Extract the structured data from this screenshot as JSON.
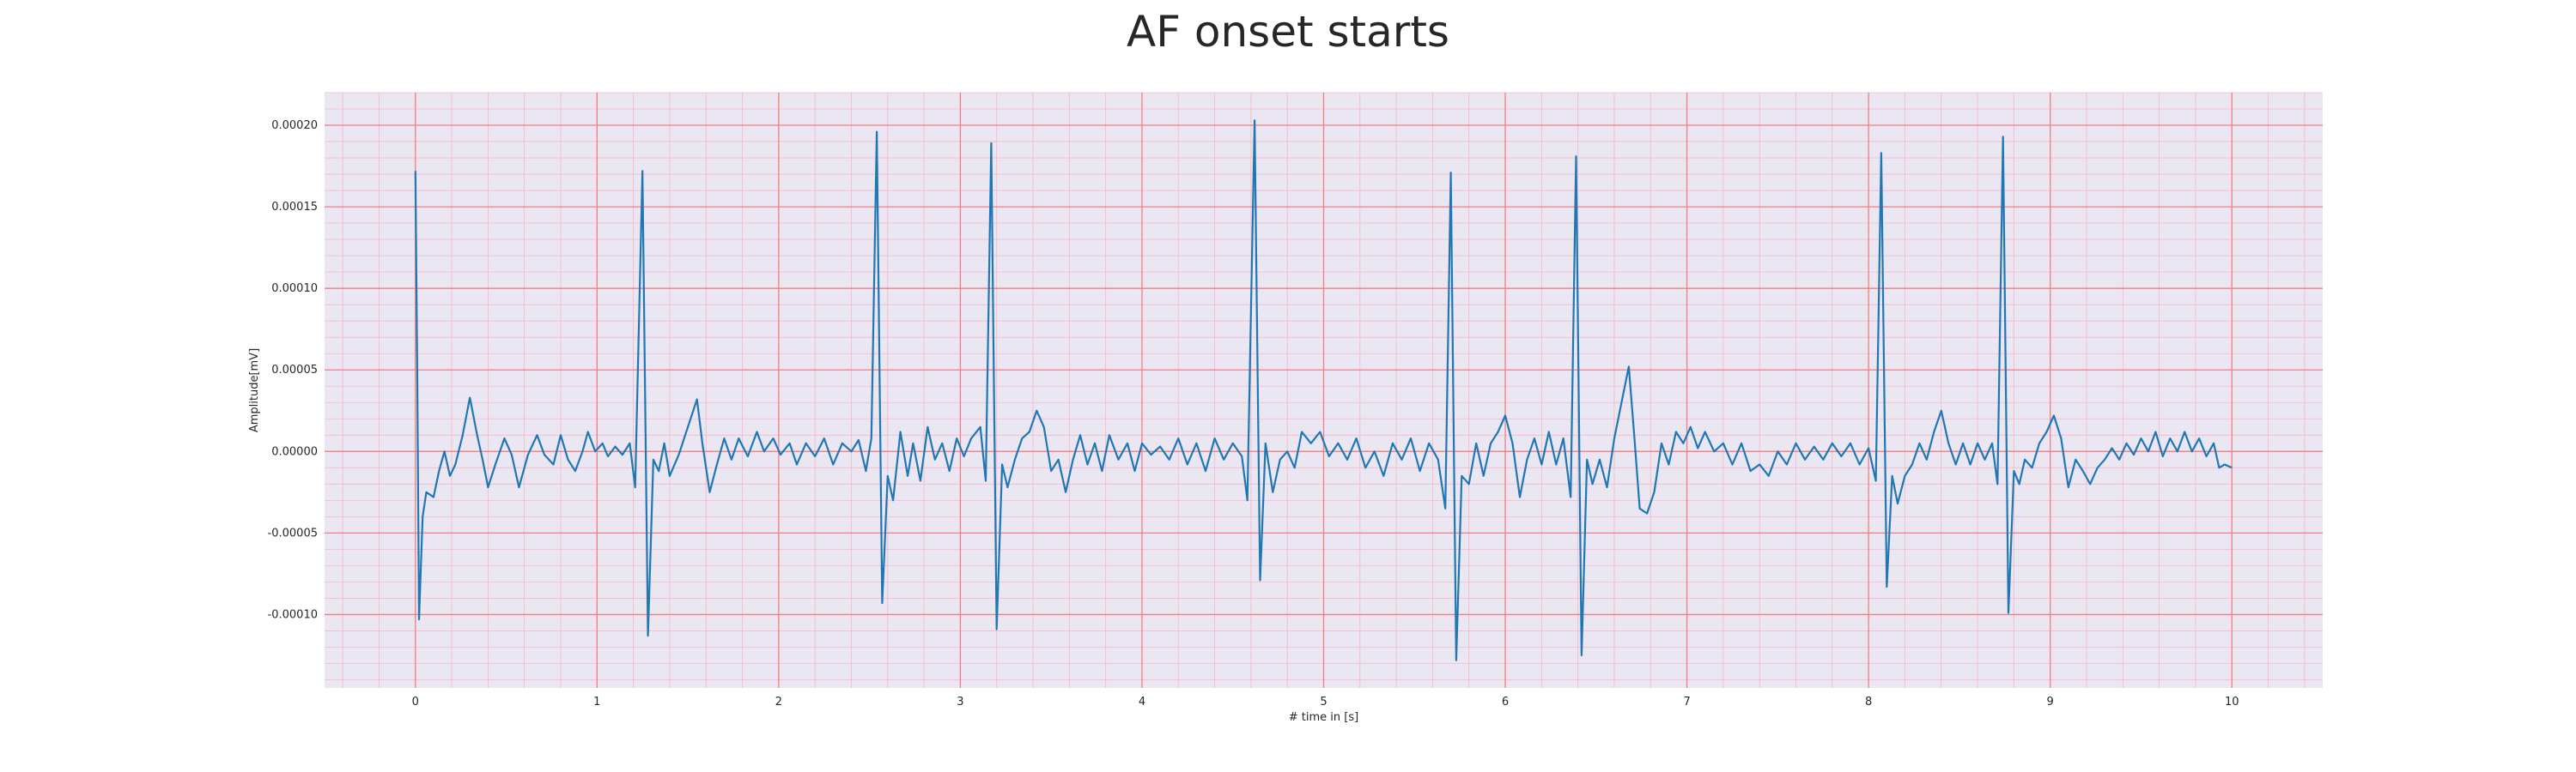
{
  "chart_data": {
    "type": "line",
    "title": "AF onset starts",
    "xlabel": "# time in [s]",
    "ylabel": "Amplitude[mV]",
    "xlim": [
      -0.5,
      10.5
    ],
    "ylim": [
      -0.000145,
      0.00022
    ],
    "xticks": [
      0,
      1,
      2,
      3,
      4,
      5,
      6,
      7,
      8,
      9,
      10
    ],
    "yticks": [
      -0.0001,
      -5e-05,
      0.0,
      5e-05,
      0.0001,
      0.00015,
      0.0002
    ],
    "ytick_labels": [
      "-0.00010",
      "-0.00005",
      "0.00000",
      "0.00005",
      "0.00010",
      "0.00015",
      "0.00020"
    ],
    "grid": "ecg-paper (major red, minor pink)",
    "colors": {
      "line": "#1f77b4",
      "background": "#eae6f2",
      "major_grid": "#f08080",
      "minor_grid": "#f5b8c8"
    },
    "series": [
      {
        "points": [
          [
            0.0,
            0.000172
          ],
          [
            0.01,
            5e-05
          ],
          [
            0.02,
            -0.000103
          ],
          [
            0.04,
            -4e-05
          ],
          [
            0.06,
            -2.5e-05
          ],
          [
            0.1,
            -2.8e-05
          ],
          [
            0.13,
            -1.2e-05
          ],
          [
            0.16,
            0.0
          ],
          [
            0.19,
            -1.5e-05
          ],
          [
            0.22,
            -8e-06
          ],
          [
            0.26,
            1e-05
          ],
          [
            0.3,
            3.3e-05
          ],
          [
            0.34,
            1e-05
          ],
          [
            0.37,
            -5e-06
          ],
          [
            0.4,
            -2.2e-05
          ],
          [
            0.44,
            -8e-06
          ],
          [
            0.49,
            8e-06
          ],
          [
            0.53,
            -2e-06
          ],
          [
            0.57,
            -2.2e-05
          ],
          [
            0.62,
            -2e-06
          ],
          [
            0.67,
            1e-05
          ],
          [
            0.71,
            -2e-06
          ],
          [
            0.76,
            -8e-06
          ],
          [
            0.8,
            1e-05
          ],
          [
            0.84,
            -5e-06
          ],
          [
            0.88,
            -1.2e-05
          ],
          [
            0.92,
            0.0
          ],
          [
            0.95,
            1.2e-05
          ],
          [
            0.99,
            0.0
          ],
          [
            1.03,
            5e-06
          ],
          [
            1.06,
            -3e-06
          ],
          [
            1.1,
            3e-06
          ],
          [
            1.14,
            -2e-06
          ],
          [
            1.18,
            5e-06
          ],
          [
            1.21,
            -2.2e-05
          ],
          [
            1.25,
            0.000172
          ],
          [
            1.28,
            -0.000113
          ],
          [
            1.31,
            -5e-06
          ],
          [
            1.34,
            -1.2e-05
          ],
          [
            1.37,
            5e-06
          ],
          [
            1.4,
            -1.5e-05
          ],
          [
            1.45,
            -2e-06
          ],
          [
            1.5,
            1.5e-05
          ],
          [
            1.55,
            3.2e-05
          ],
          [
            1.58,
            5e-06
          ],
          [
            1.62,
            -2.5e-05
          ],
          [
            1.66,
            -8e-06
          ],
          [
            1.7,
            8e-06
          ],
          [
            1.74,
            -5e-06
          ],
          [
            1.78,
            8e-06
          ],
          [
            1.83,
            -3e-06
          ],
          [
            1.88,
            1.2e-05
          ],
          [
            1.92,
            0.0
          ],
          [
            1.97,
            8e-06
          ],
          [
            2.01,
            -2e-06
          ],
          [
            2.06,
            5e-06
          ],
          [
            2.1,
            -8e-06
          ],
          [
            2.15,
            5e-06
          ],
          [
            2.2,
            -3e-06
          ],
          [
            2.25,
            8e-06
          ],
          [
            2.3,
            -8e-06
          ],
          [
            2.35,
            5e-06
          ],
          [
            2.4,
            0.0
          ],
          [
            2.44,
            7e-06
          ],
          [
            2.48,
            -1.2e-05
          ],
          [
            2.51,
            8e-06
          ],
          [
            2.54,
            0.000196
          ],
          [
            2.57,
            -9.3e-05
          ],
          [
            2.6,
            -1.5e-05
          ],
          [
            2.63,
            -3e-05
          ],
          [
            2.67,
            1.2e-05
          ],
          [
            2.71,
            -1.5e-05
          ],
          [
            2.74,
            5e-06
          ],
          [
            2.78,
            -1.8e-05
          ],
          [
            2.82,
            1.5e-05
          ],
          [
            2.86,
            -5e-06
          ],
          [
            2.9,
            5e-06
          ],
          [
            2.94,
            -1.2e-05
          ],
          [
            2.98,
            8e-06
          ],
          [
            3.02,
            -3e-06
          ],
          [
            3.06,
            8e-06
          ],
          [
            3.11,
            1.5e-05
          ],
          [
            3.14,
            -1.8e-05
          ],
          [
            3.17,
            0.000189
          ],
          [
            3.2,
            -0.000109
          ],
          [
            3.23,
            -8e-06
          ],
          [
            3.26,
            -2.2e-05
          ],
          [
            3.3,
            -5e-06
          ],
          [
            3.34,
            8e-06
          ],
          [
            3.38,
            1.2e-05
          ],
          [
            3.42,
            2.5e-05
          ],
          [
            3.46,
            1.5e-05
          ],
          [
            3.5,
            -1.2e-05
          ],
          [
            3.54,
            -5e-06
          ],
          [
            3.58,
            -2.5e-05
          ],
          [
            3.62,
            -5e-06
          ],
          [
            3.66,
            1e-05
          ],
          [
            3.7,
            -8e-06
          ],
          [
            3.74,
            5e-06
          ],
          [
            3.78,
            -1.2e-05
          ],
          [
            3.82,
            1e-05
          ],
          [
            3.87,
            -5e-06
          ],
          [
            3.92,
            5e-06
          ],
          [
            3.96,
            -1.2e-05
          ],
          [
            4.0,
            5e-06
          ],
          [
            4.05,
            -2e-06
          ],
          [
            4.1,
            3e-06
          ],
          [
            4.15,
            -5e-06
          ],
          [
            4.2,
            8e-06
          ],
          [
            4.25,
            -8e-06
          ],
          [
            4.3,
            5e-06
          ],
          [
            4.35,
            -1.2e-05
          ],
          [
            4.4,
            8e-06
          ],
          [
            4.45,
            -5e-06
          ],
          [
            4.5,
            5e-06
          ],
          [
            4.55,
            -3e-06
          ],
          [
            4.58,
            -3e-05
          ],
          [
            4.62,
            0.000203
          ],
          [
            4.65,
            -7.9e-05
          ],
          [
            4.68,
            5e-06
          ],
          [
            4.72,
            -2.5e-05
          ],
          [
            4.76,
            -5e-06
          ],
          [
            4.8,
            0.0
          ],
          [
            4.84,
            -1e-05
          ],
          [
            4.88,
            1.2e-05
          ],
          [
            4.93,
            5e-06
          ],
          [
            4.98,
            1.2e-05
          ],
          [
            5.03,
            -3e-06
          ],
          [
            5.08,
            5e-06
          ],
          [
            5.13,
            -5e-06
          ],
          [
            5.18,
            8e-06
          ],
          [
            5.23,
            -1e-05
          ],
          [
            5.28,
            0.0
          ],
          [
            5.33,
            -1.5e-05
          ],
          [
            5.38,
            5e-06
          ],
          [
            5.43,
            -5e-06
          ],
          [
            5.48,
            8e-06
          ],
          [
            5.53,
            -1.2e-05
          ],
          [
            5.58,
            5e-06
          ],
          [
            5.63,
            -5e-06
          ],
          [
            5.67,
            -3.5e-05
          ],
          [
            5.7,
            0.000171
          ],
          [
            5.73,
            -0.000128
          ],
          [
            5.76,
            -1.5e-05
          ],
          [
            5.8,
            -2e-05
          ],
          [
            5.84,
            5e-06
          ],
          [
            5.88,
            -1.5e-05
          ],
          [
            5.92,
            5e-06
          ],
          [
            5.96,
            1.2e-05
          ],
          [
            6.0,
            2.2e-05
          ],
          [
            6.04,
            5e-06
          ],
          [
            6.08,
            -2.8e-05
          ],
          [
            6.12,
            -5e-06
          ],
          [
            6.16,
            8e-06
          ],
          [
            6.2,
            -8e-06
          ],
          [
            6.24,
            1.2e-05
          ],
          [
            6.28,
            -8e-06
          ],
          [
            6.32,
            8e-06
          ],
          [
            6.36,
            -2.8e-05
          ],
          [
            6.39,
            0.000181
          ],
          [
            6.42,
            -0.000125
          ],
          [
            6.45,
            -5e-06
          ],
          [
            6.48,
            -2e-05
          ],
          [
            6.52,
            -5e-06
          ],
          [
            6.56,
            -2.2e-05
          ],
          [
            6.6,
            8e-06
          ],
          [
            6.64,
            3e-05
          ],
          [
            6.68,
            5.2e-05
          ],
          [
            6.71,
            1e-05
          ],
          [
            6.74,
            -3.5e-05
          ],
          [
            6.78,
            -3.8e-05
          ],
          [
            6.82,
            -2.5e-05
          ],
          [
            6.86,
            5e-06
          ],
          [
            6.9,
            -8e-06
          ],
          [
            6.94,
            1.2e-05
          ],
          [
            6.98,
            5e-06
          ],
          [
            7.02,
            1.5e-05
          ],
          [
            7.06,
            2e-06
          ],
          [
            7.1,
            1.2e-05
          ],
          [
            7.15,
            0.0
          ],
          [
            7.2,
            5e-06
          ],
          [
            7.25,
            -8e-06
          ],
          [
            7.3,
            5e-06
          ],
          [
            7.35,
            -1.2e-05
          ],
          [
            7.4,
            -8e-06
          ],
          [
            7.45,
            -1.5e-05
          ],
          [
            7.5,
            0.0
          ],
          [
            7.55,
            -8e-06
          ],
          [
            7.6,
            5e-06
          ],
          [
            7.65,
            -5e-06
          ],
          [
            7.7,
            3e-06
          ],
          [
            7.75,
            -5e-06
          ],
          [
            7.8,
            5e-06
          ],
          [
            7.85,
            -3e-06
          ],
          [
            7.9,
            5e-06
          ],
          [
            7.95,
            -8e-06
          ],
          [
            8.0,
            2e-06
          ],
          [
            8.04,
            -1.8e-05
          ],
          [
            8.07,
            0.000183
          ],
          [
            8.1,
            -8.3e-05
          ],
          [
            8.13,
            -1.5e-05
          ],
          [
            8.16,
            -3.2e-05
          ],
          [
            8.2,
            -1.5e-05
          ],
          [
            8.24,
            -8e-06
          ],
          [
            8.28,
            5e-06
          ],
          [
            8.32,
            -5e-06
          ],
          [
            8.36,
            1.2e-05
          ],
          [
            8.4,
            2.5e-05
          ],
          [
            8.44,
            5e-06
          ],
          [
            8.48,
            -8e-06
          ],
          [
            8.52,
            5e-06
          ],
          [
            8.56,
            -8e-06
          ],
          [
            8.6,
            5e-06
          ],
          [
            8.64,
            -5e-06
          ],
          [
            8.68,
            5e-06
          ],
          [
            8.71,
            -2e-05
          ],
          [
            8.74,
            0.000193
          ],
          [
            8.77,
            -9.9e-05
          ],
          [
            8.8,
            -1.2e-05
          ],
          [
            8.83,
            -2e-05
          ],
          [
            8.86,
            -5e-06
          ],
          [
            8.9,
            -1e-05
          ],
          [
            8.94,
            5e-06
          ],
          [
            8.98,
            1.2e-05
          ],
          [
            9.02,
            2.2e-05
          ],
          [
            9.06,
            8e-06
          ],
          [
            9.1,
            -2.2e-05
          ],
          [
            9.14,
            -5e-06
          ],
          [
            9.18,
            -1.2e-05
          ],
          [
            9.22,
            -2e-05
          ],
          [
            9.26,
            -1e-05
          ],
          [
            9.3,
            -5e-06
          ],
          [
            9.34,
            2e-06
          ],
          [
            9.38,
            -5e-06
          ],
          [
            9.42,
            5e-06
          ],
          [
            9.46,
            -2e-06
          ],
          [
            9.5,
            8e-06
          ],
          [
            9.54,
            0.0
          ],
          [
            9.58,
            1.2e-05
          ],
          [
            9.62,
            -3e-06
          ],
          [
            9.66,
            8e-06
          ],
          [
            9.7,
            0.0
          ],
          [
            9.74,
            1.2e-05
          ],
          [
            9.78,
            0.0
          ],
          [
            9.82,
            8e-06
          ],
          [
            9.86,
            -3e-06
          ],
          [
            9.9,
            5e-06
          ],
          [
            9.93,
            -1e-05
          ],
          [
            9.96,
            -8e-06
          ],
          [
            10.0,
            -1e-05
          ]
        ]
      }
    ]
  }
}
